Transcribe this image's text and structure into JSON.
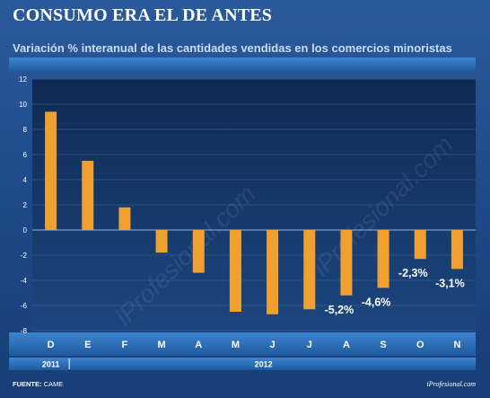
{
  "header": {
    "title": "CONSUMO ERA EL DE ANTES",
    "subtitle": "Variación % interanual de las cantidades vendidas en los comercios minoristas"
  },
  "footer": {
    "source_label": "FUENTE:",
    "source_value": "CAME",
    "brand": "iProfesional.com"
  },
  "watermark": "iProfesional.com",
  "colors": {
    "bar": "#f0a030",
    "plot_bg": "#15335f",
    "band": "#2f6fb8",
    "text": "#ffffff"
  },
  "chart_data": {
    "type": "bar",
    "categories": [
      "D",
      "E",
      "F",
      "M",
      "A",
      "M",
      "J",
      "J",
      "A",
      "S",
      "O",
      "N"
    ],
    "values": [
      9.4,
      5.5,
      1.8,
      -1.8,
      -3.4,
      -6.5,
      -6.7,
      -6.3,
      -5.2,
      -4.6,
      -2.3,
      -3.1
    ],
    "data_labels": [
      "",
      "",
      "",
      "",
      "",
      "",
      "",
      "",
      "-5,2%",
      "-4,6%",
      "-2,3%",
      "-3,1%"
    ],
    "year_groups": [
      {
        "label": "2011",
        "span": 1
      },
      {
        "label": "2012",
        "span": 11
      }
    ],
    "yticks": [
      12,
      10,
      8,
      6,
      4,
      2,
      0,
      -2,
      -4,
      -6,
      -8
    ],
    "ylim": [
      -8,
      12
    ],
    "grid": true
  }
}
